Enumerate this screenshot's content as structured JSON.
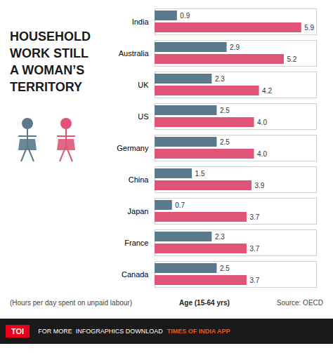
{
  "chart_data": {
    "type": "bar",
    "orientation": "horizontal",
    "title": "HOUSEHOLD\nWORK STILL\nA WOMAN’S\nTERRITORY",
    "subtitle": "(Hours per day spent on unpaid labour)",
    "annotations": [
      "Age (15-64 yrs)",
      "Source: OECD",
      "TOI",
      "FOR MORE  INFOGRAPHICS DOWNLOAD",
      "TIMES OF INDIA APP"
    ],
    "categories": [
      "India",
      "Australia",
      "UK",
      "US",
      "Germany",
      "China",
      "Japan",
      "France",
      "Canada"
    ],
    "series": [
      {
        "color": "#5a7a8c",
        "values": [
          0.9,
          2.9,
          2.3,
          2.5,
          2.5,
          1.5,
          0.7,
          2.3,
          2.5
        ]
      },
      {
        "color": "#e05577",
        "values": [
          5.9,
          5.2,
          4.2,
          4.0,
          4.0,
          3.9,
          3.7,
          3.7,
          3.7
        ],
        "value_labels": [
          "5.9",
          "5.2",
          "4.2",
          "4.0",
          "4.0",
          "3.9",
          "3.7",
          "3.7",
          "3.7"
        ]
      }
    ],
    "xlim": [
      0,
      6.5
    ],
    "data_labels": true,
    "tick_labels": "y",
    "grid": false
  }
}
